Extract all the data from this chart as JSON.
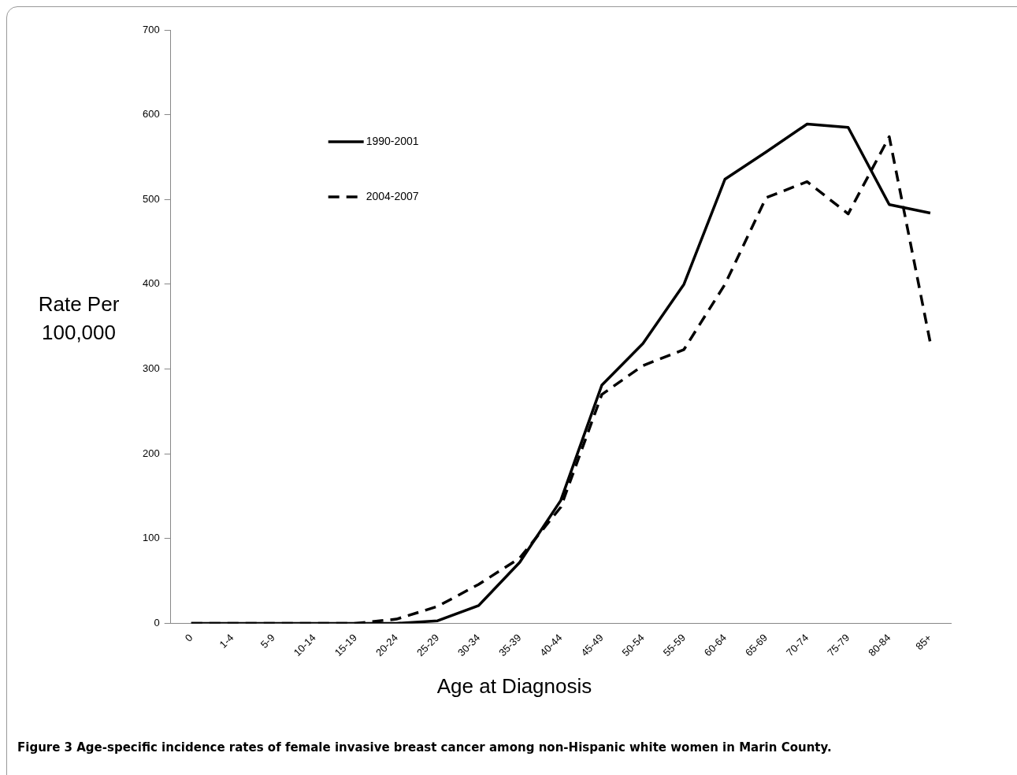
{
  "chart_data": {
    "type": "line",
    "ylabel": "Rate Per 100,000",
    "xlabel": "Age at Diagnosis",
    "categories": [
      "0",
      "1-4",
      "5-9",
      "10-14",
      "15-19",
      "20-24",
      "25-29",
      "30-34",
      "35-39",
      "40-44",
      "45-49",
      "50-54",
      "55-59",
      "60-64",
      "65-69",
      "70-74",
      "75-79",
      "80-84",
      "85+"
    ],
    "series": [
      {
        "name": "1990-2001",
        "color": "#000000",
        "line_style": "solid",
        "values": [
          0,
          0,
          0,
          0,
          0,
          0,
          3,
          21,
          72,
          145,
          281,
          330,
          400,
          524,
          556,
          589,
          585,
          494,
          484
        ]
      },
      {
        "name": "2004-2007",
        "color": "#000000",
        "line_style": "dashed",
        "values": [
          0,
          0,
          0,
          0,
          0,
          5,
          20,
          46,
          77,
          137,
          270,
          304,
          323,
          400,
          502,
          521,
          483,
          574,
          331
        ]
      }
    ],
    "ylim": [
      0,
      700
    ],
    "yticks": [
      0,
      100,
      200,
      300,
      400,
      500,
      600,
      700
    ],
    "grid": false,
    "legend": "top left",
    "marker": "none",
    "annotations": [
      "Figure 3 Age-specific incidence rates of female invasive breast cancer among non-Hispanic white women in Marin County."
    ]
  }
}
